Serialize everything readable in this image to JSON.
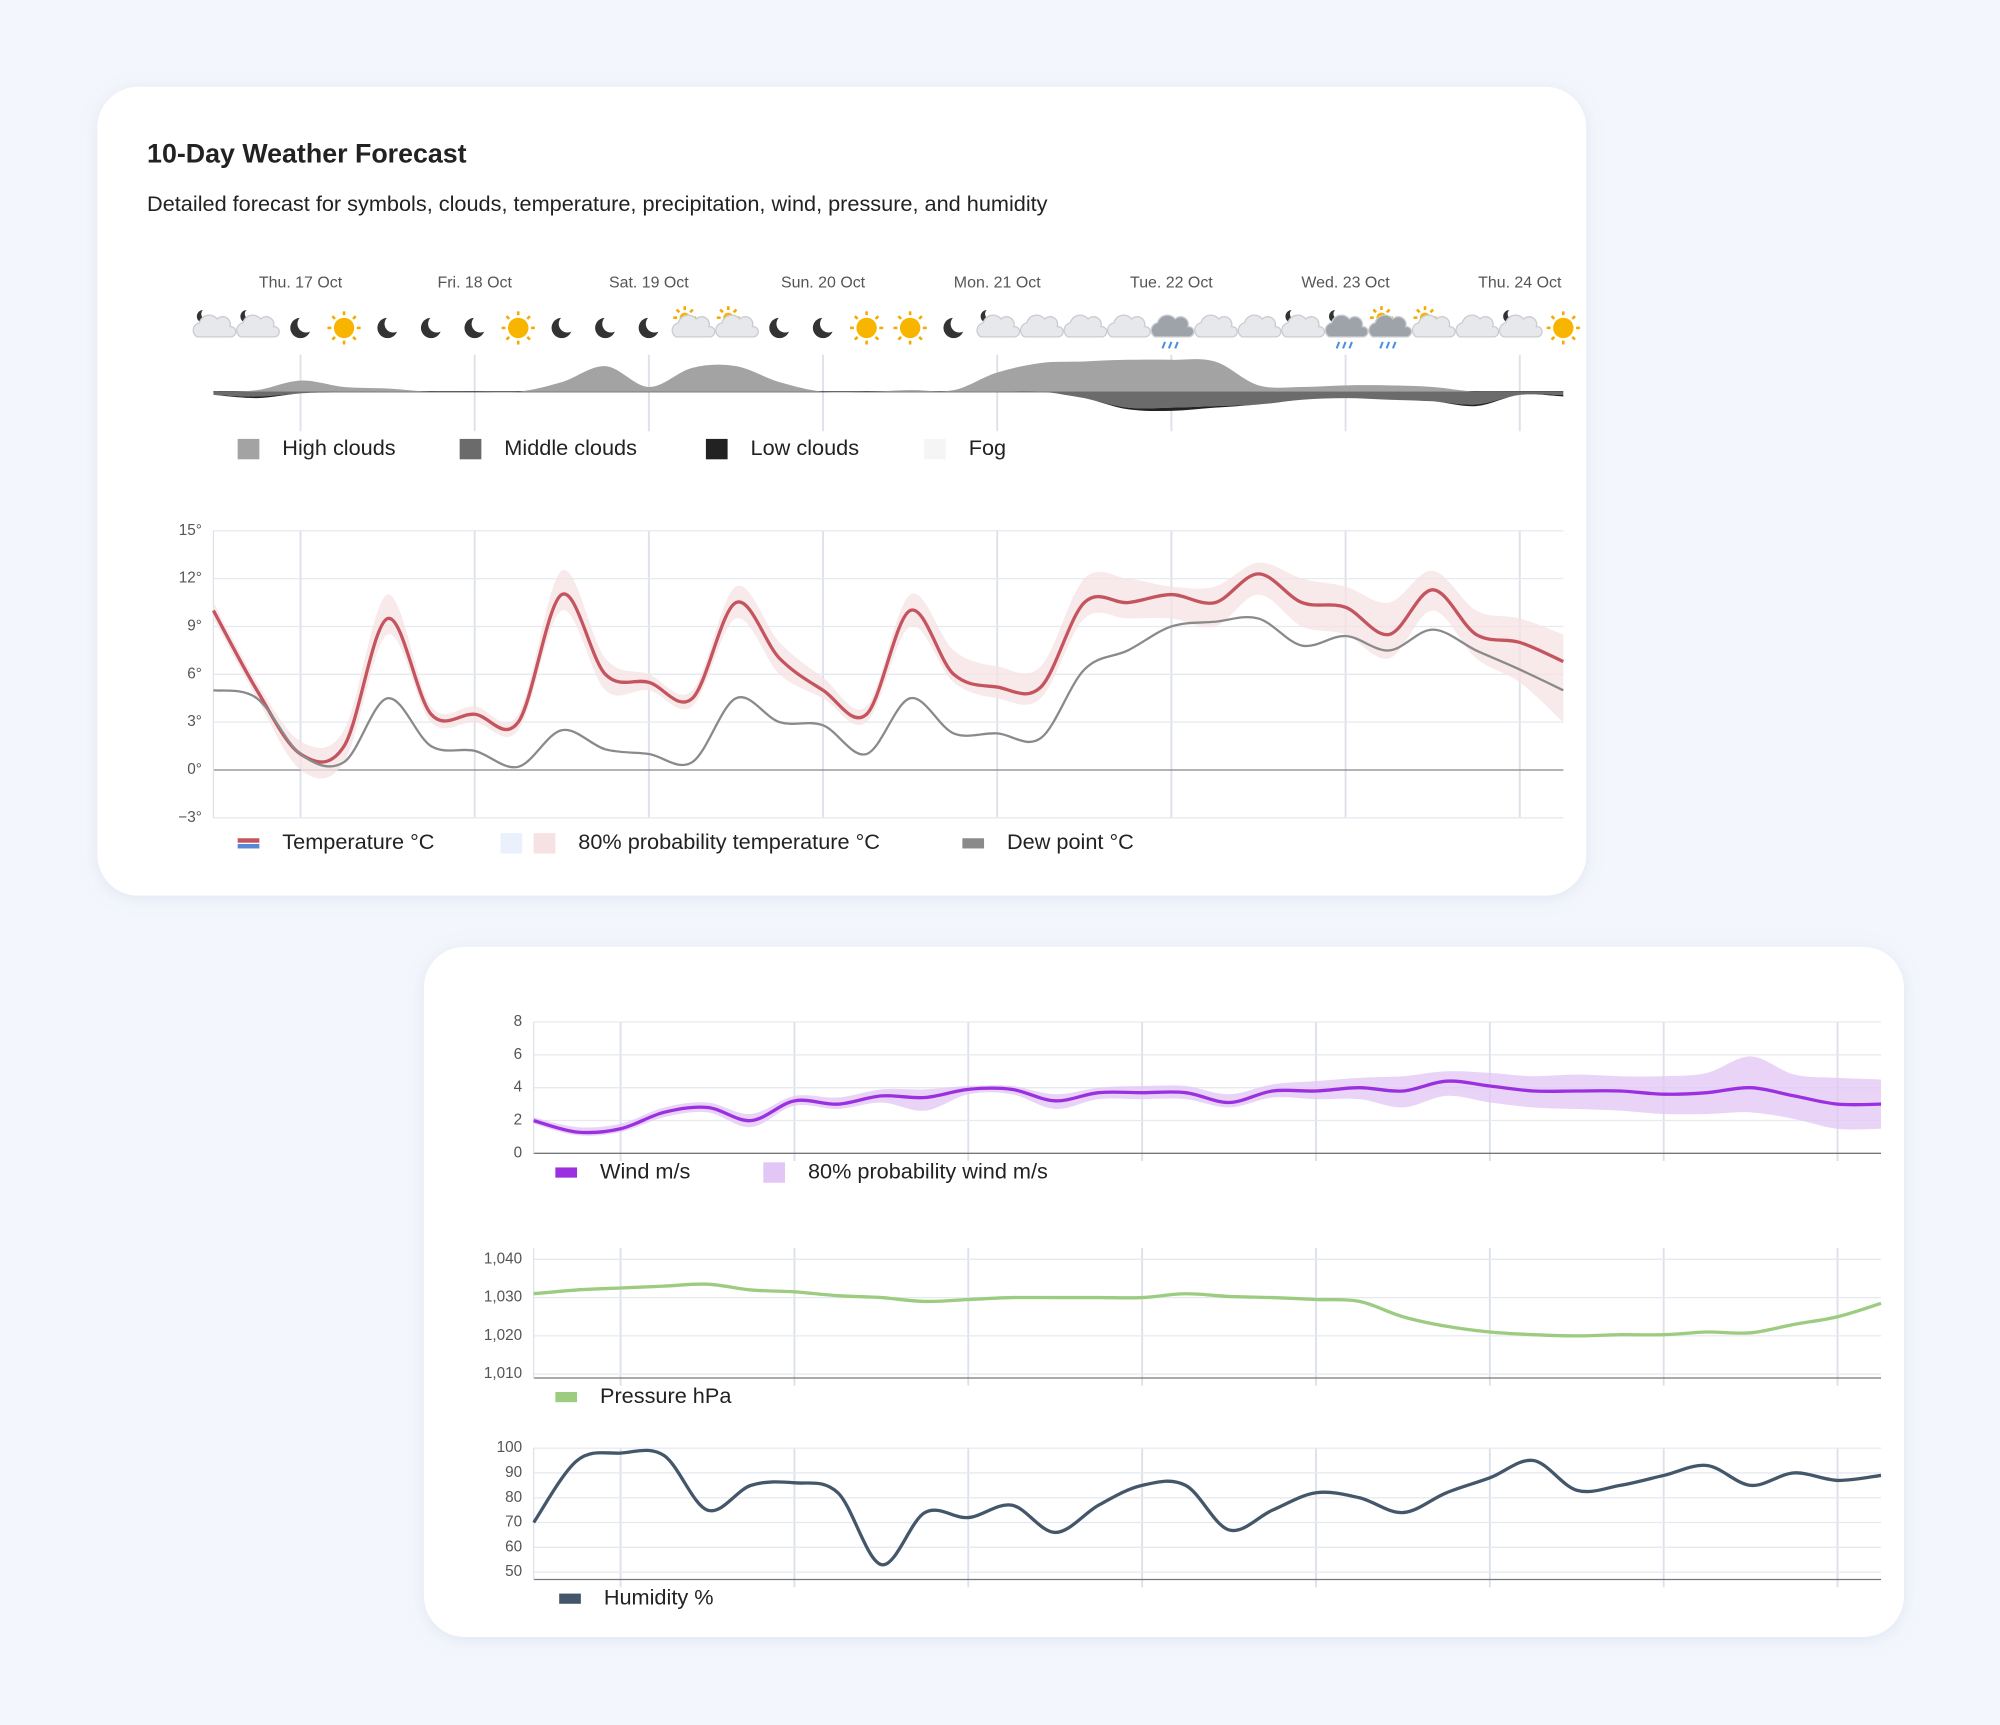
{
  "header": {
    "title": "10-Day Weather Forecast",
    "subtitle": "Detailed forecast for symbols, clouds, temperature, precipitation, wind, pressure, and humidity"
  },
  "chart_data": [
    {
      "type": "area",
      "categories": [
        null,
        null,
        "Thu. 17 Oct",
        null,
        null,
        null,
        "Fri. 18 Oct",
        null,
        null,
        null,
        "Sat. 19 Oct",
        null,
        null,
        null,
        "Sun. 20 Oct",
        null,
        null,
        null,
        "Mon. 21 Oct",
        null,
        null,
        null,
        "Tue. 22 Oct",
        null,
        null,
        null,
        "Wed. 23 Oct",
        null,
        null,
        null,
        "Thu. 24 Oct",
        null
      ],
      "ylim": [
        0,
        100
      ],
      "series": [
        {
          "name": "High clouds",
          "color": "#a3a3a3",
          "direction": "up",
          "values": [
            0,
            5,
            35,
            15,
            10,
            0,
            0,
            0,
            30,
            80,
            15,
            75,
            80,
            30,
            0,
            0,
            5,
            5,
            60,
            90,
            95,
            100,
            100,
            95,
            20,
            15,
            20,
            20,
            15,
            0,
            0,
            0
          ]
        },
        {
          "name": "Middle clouds",
          "color": "#6b6b6b",
          "direction": "down",
          "values": [
            10,
            15,
            5,
            0,
            0,
            0,
            0,
            0,
            0,
            0,
            0,
            0,
            0,
            0,
            0,
            0,
            0,
            0,
            0,
            0,
            20,
            50,
            50,
            45,
            40,
            25,
            20,
            25,
            30,
            40,
            10,
            10
          ]
        },
        {
          "name": "Low clouds",
          "color": "#222222",
          "direction": "down",
          "values": [
            0,
            5,
            0,
            0,
            0,
            0,
            0,
            0,
            0,
            0,
            0,
            0,
            0,
            0,
            0,
            0,
            0,
            0,
            0,
            0,
            0,
            5,
            10,
            5,
            0,
            0,
            0,
            0,
            0,
            5,
            0,
            5
          ]
        },
        {
          "name": "Fog",
          "color": "#f5f5f5",
          "direction": "up",
          "values": [
            0,
            0,
            0,
            0,
            0,
            0,
            0,
            0,
            0,
            0,
            0,
            0,
            0,
            0,
            0,
            0,
            0,
            0,
            0,
            0,
            0,
            0,
            0,
            0,
            0,
            0,
            0,
            0,
            0,
            0,
            0,
            0
          ]
        }
      ]
    },
    {
      "type": "line",
      "ylim": [
        -3,
        15
      ],
      "yticks": [
        {
          "value": -3,
          "label": "−3°"
        },
        {
          "value": 0,
          "label": "0°"
        },
        {
          "value": 3,
          "label": "3°"
        },
        {
          "value": 6,
          "label": "6°"
        },
        {
          "value": 9,
          "label": "9°"
        },
        {
          "value": 12,
          "label": "12°"
        },
        {
          "value": 15,
          "label": "15°"
        }
      ],
      "grid": true,
      "series": [
        {
          "name": "Temperature °C",
          "colors": [
            "#c4545e",
            "#5a86d6"
          ],
          "values": [
            10,
            5,
            1,
            1.5,
            9.5,
            3.5,
            3.5,
            3,
            11,
            6,
            5.5,
            4.5,
            10.5,
            7,
            5,
            3.5,
            10,
            6,
            5.2,
            5.2,
            10.5,
            10.5,
            11,
            10.5,
            12.3,
            10.5,
            10.2,
            8.5,
            11.3,
            8.5,
            8,
            6.8
          ]
        },
        {
          "name": "80% probability temperature °C",
          "colors": [
            "#eaf1fc",
            "#f6e1e3"
          ],
          "low": [
            9.5,
            4.5,
            0,
            0.5,
            8.5,
            3,
            3,
            2.5,
            10,
            5,
            5,
            4,
            9.5,
            6,
            4.5,
            3,
            9,
            5.5,
            4.5,
            4.5,
            9.5,
            9.5,
            9.5,
            9,
            11,
            9,
            8.5,
            7,
            10,
            7,
            5.5,
            3
          ],
          "high": [
            10.5,
            5.5,
            1.8,
            2.5,
            11,
            4,
            4,
            3.5,
            12.5,
            7,
            6,
            5,
            11.5,
            8,
            5.8,
            4,
            11,
            7.5,
            6.5,
            6.5,
            12,
            12,
            11.5,
            11.5,
            13,
            12,
            11.5,
            10.5,
            12.5,
            10,
            9.5,
            8.5
          ]
        },
        {
          "name": "Dew point °C",
          "color": "#8a8a8a",
          "values": [
            5,
            4.5,
            1,
            0.5,
            4.5,
            1.5,
            1.2,
            0.2,
            2.5,
            1.3,
            1,
            0.5,
            4.5,
            3,
            2.8,
            1,
            4.5,
            2.3,
            2.3,
            2,
            6.3,
            7.5,
            9,
            9.3,
            9.5,
            7.8,
            8.4,
            7.5,
            8.8,
            7.5,
            6.3,
            5
          ]
        }
      ]
    },
    {
      "type": "line",
      "ylim": [
        0,
        8
      ],
      "yticks": [
        0,
        2,
        4,
        6,
        8
      ],
      "grid": true,
      "series": [
        {
          "name": "Wind m/s",
          "color": "#9b30e0",
          "values": [
            2,
            1.3,
            1.5,
            2.5,
            2.8,
            2,
            3.2,
            3,
            3.5,
            3.4,
            3.9,
            3.9,
            3.2,
            3.7,
            3.7,
            3.7,
            3.1,
            3.8,
            3.8,
            4,
            3.8,
            4.4,
            4.1,
            3.8,
            3.8,
            3.8,
            3.6,
            3.7,
            4,
            3.5,
            3,
            3
          ]
        },
        {
          "name": "80% probability wind m/s",
          "color": "#e2c6f6",
          "low": [
            1.8,
            1.1,
            1.3,
            2.2,
            2.5,
            1.6,
            2.9,
            2.7,
            3.1,
            2.6,
            3.6,
            3.6,
            2.7,
            3.3,
            3.3,
            3.3,
            2.8,
            3.4,
            3.3,
            3.3,
            2.8,
            3.5,
            3.1,
            2.8,
            2.7,
            2.6,
            2.4,
            2.4,
            2.5,
            2.1,
            1.5,
            1.5
          ],
          "high": [
            2.2,
            1.6,
            1.8,
            2.8,
            3.1,
            2.4,
            3.5,
            3.4,
            3.9,
            3.9,
            4.1,
            4.1,
            3.6,
            4,
            4.1,
            4.1,
            3.6,
            4.2,
            4.4,
            4.6,
            4.7,
            5,
            4.9,
            4.7,
            4.8,
            4.7,
            4.7,
            4.9,
            5.9,
            4.8,
            4.6,
            4.5
          ]
        }
      ]
    },
    {
      "type": "line",
      "ylim": [
        1009,
        1043
      ],
      "yticks": [
        {
          "value": 1010,
          "label": "1,010"
        },
        {
          "value": 1020,
          "label": "1,020"
        },
        {
          "value": 1030,
          "label": "1,030"
        },
        {
          "value": 1040,
          "label": "1,040"
        }
      ],
      "grid": true,
      "series": [
        {
          "name": "Pressure hPa",
          "color": "#9ccc7f",
          "values": [
            1031,
            1032,
            1032.5,
            1033,
            1033.5,
            1032,
            1031.5,
            1030.5,
            1030,
            1029,
            1029.5,
            1030,
            1030,
            1030,
            1030,
            1031,
            1030.3,
            1030,
            1029.5,
            1029,
            1025,
            1022.5,
            1021,
            1020.3,
            1020,
            1020.3,
            1020.3,
            1021,
            1020.8,
            1023,
            1025,
            1028.5
          ]
        }
      ]
    },
    {
      "type": "line",
      "ylim": [
        47,
        100
      ],
      "yticks": [
        50,
        60,
        70,
        80,
        90,
        100
      ],
      "grid": true,
      "series": [
        {
          "name": "Humidity %",
          "color": "#44576a",
          "values": [
            70,
            95,
            98,
            97,
            75,
            85,
            86,
            82,
            53,
            74,
            72,
            77,
            66,
            77,
            85,
            85,
            67,
            75,
            82,
            80,
            74,
            82,
            88,
            95,
            83,
            85,
            89,
            93,
            85,
            90,
            87,
            89
          ]
        }
      ]
    }
  ]
}
